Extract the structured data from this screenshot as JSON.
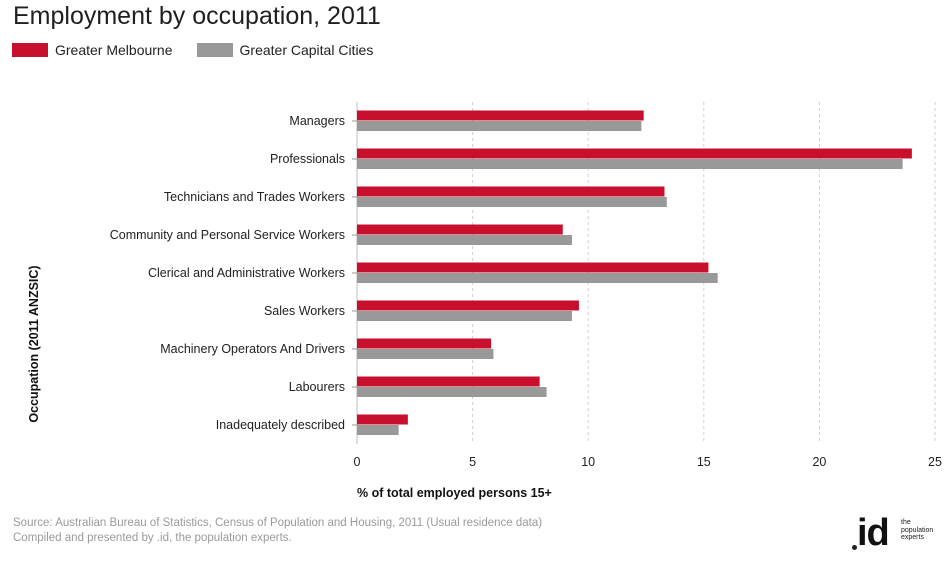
{
  "chart_data": {
    "type": "bar",
    "orientation": "horizontal",
    "title": "Employment by occupation, 2011",
    "xlabel": "% of total employed persons 15+",
    "ylabel": "Occupation (2011 ANZSIC)",
    "xlim": [
      0,
      25
    ],
    "xticks": [
      0,
      5,
      10,
      15,
      20,
      25
    ],
    "grid": true,
    "legend_position": "top-left",
    "categories": [
      "Managers",
      "Professionals",
      "Technicians and Trades Workers",
      "Community and Personal Service Workers",
      "Clerical and Administrative Workers",
      "Sales Workers",
      "Machinery Operators And Drivers",
      "Labourers",
      "Inadequately described"
    ],
    "series": [
      {
        "name": "Greater Melbourne",
        "color": "#c8102e",
        "values": [
          12.4,
          24.0,
          13.3,
          8.9,
          15.2,
          9.6,
          5.8,
          7.9,
          2.2
        ]
      },
      {
        "name": "Greater Capital Cities",
        "color": "#999999",
        "values": [
          12.3,
          23.6,
          13.4,
          9.3,
          15.6,
          9.3,
          5.9,
          8.2,
          1.8
        ]
      }
    ]
  },
  "footer": {
    "source_line1": "Source: Australian Bureau of Statistics, Census of Population and Housing, 2011 (Usual residence data)",
    "source_line2": "Compiled and presented by .id, the population experts.",
    "logo_mark": "id",
    "logo_text_1": "the",
    "logo_text_2": "population",
    "logo_text_3": "experts"
  }
}
